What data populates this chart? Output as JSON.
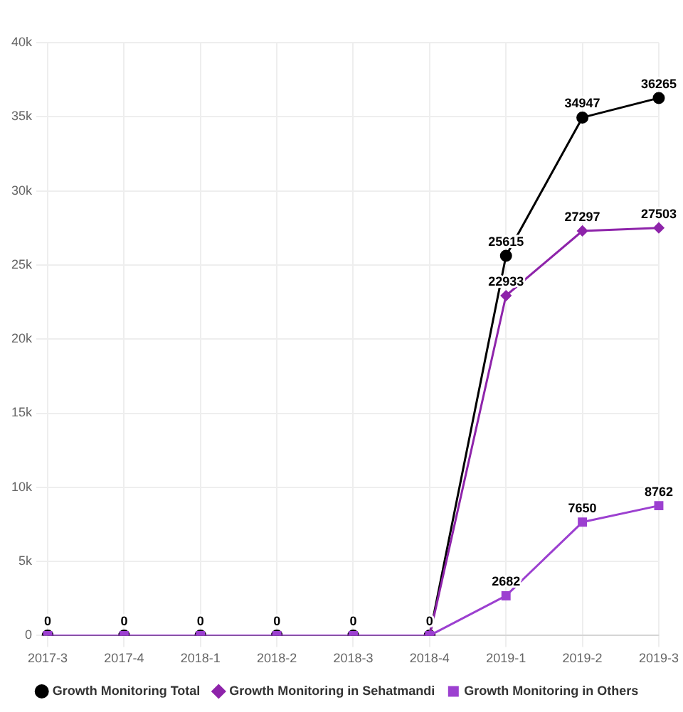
{
  "chart_data": {
    "type": "line",
    "categories": [
      "2017-3",
      "2017-4",
      "2018-1",
      "2018-2",
      "2018-3",
      "2018-4",
      "2019-1",
      "2019-2",
      "2019-3"
    ],
    "ylim": [
      0,
      40000
    ],
    "yticks": [
      {
        "value": 0,
        "label": "0"
      },
      {
        "value": 5000,
        "label": "5k"
      },
      {
        "value": 10000,
        "label": "10k"
      },
      {
        "value": 15000,
        "label": "15k"
      },
      {
        "value": 20000,
        "label": "20k"
      },
      {
        "value": 25000,
        "label": "25k"
      },
      {
        "value": 30000,
        "label": "30k"
      },
      {
        "value": 35000,
        "label": "35k"
      },
      {
        "value": 40000,
        "label": "40k"
      }
    ],
    "grid": true,
    "legend": "bottom",
    "line_style": "solid",
    "series": [
      {
        "name": "Growth Monitoring Total",
        "color": "#000000",
        "marker": "circle",
        "values": [
          0,
          0,
          0,
          0,
          0,
          0,
          25615,
          34947,
          36265
        ],
        "value_labels": [
          "0",
          "0",
          "0",
          "0",
          "0",
          "0",
          "25615",
          "34947",
          "36265"
        ]
      },
      {
        "name": "Growth Monitoring in Sehatmandi",
        "color": "#8e24aa",
        "marker": "diamond",
        "values": [
          null,
          null,
          null,
          null,
          null,
          0,
          22933,
          27297,
          27503
        ],
        "value_labels": [
          null,
          null,
          null,
          null,
          null,
          null,
          "22933",
          "27297",
          "27503"
        ]
      },
      {
        "name": "Growth Monitoring in Others",
        "color": "#9c40d0",
        "marker": "square",
        "values": [
          0,
          0,
          0,
          0,
          0,
          0,
          2682,
          7650,
          8762
        ],
        "value_labels": [
          null,
          null,
          null,
          null,
          null,
          null,
          "2682",
          "7650",
          "8762"
        ]
      }
    ]
  }
}
